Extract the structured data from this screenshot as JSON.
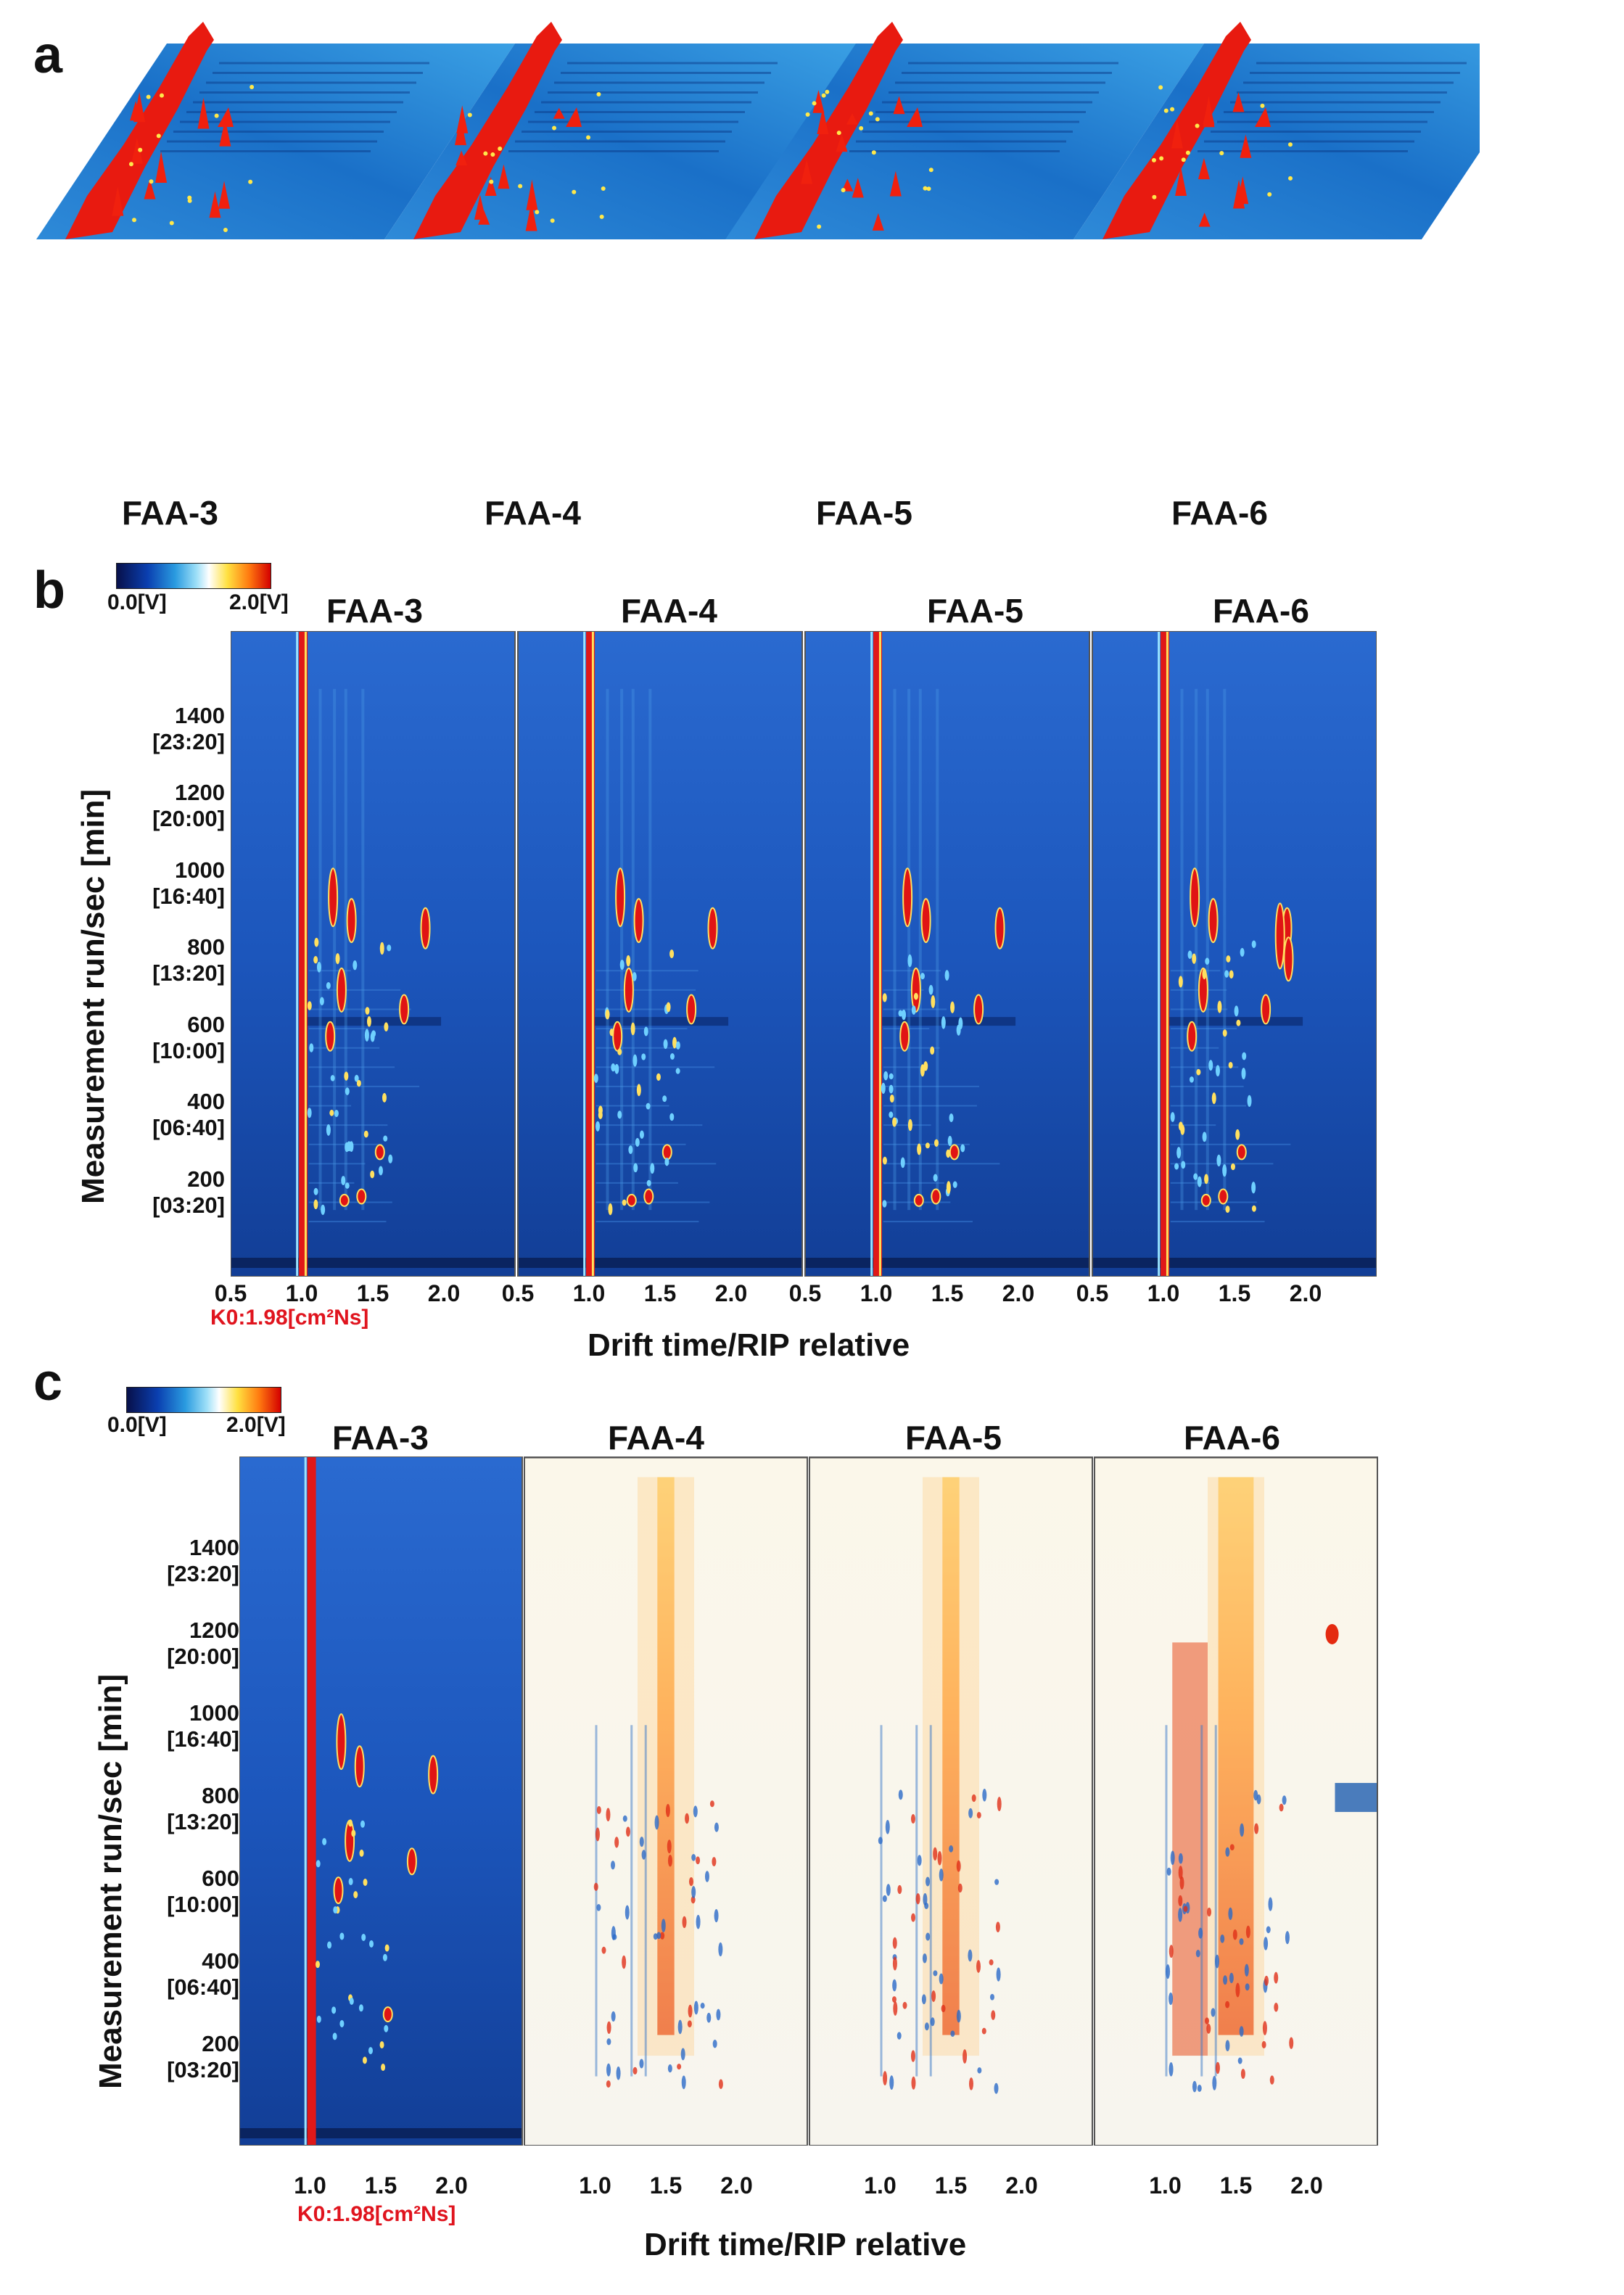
{
  "panels": {
    "a": "a",
    "b": "b",
    "c": "c"
  },
  "samples": [
    "FAA-3",
    "FAA-4",
    "FAA-5",
    "FAA-6"
  ],
  "colorbar": {
    "min_label": "0.0[V]",
    "max_label": "2.0[V]"
  },
  "y_axis": {
    "title": "Measurement run/sec [min]",
    "ticks": [
      {
        "value": 200,
        "time": "[03:20]"
      },
      {
        "value": 400,
        "time": "[06:40]"
      },
      {
        "value": 600,
        "time": "[10:00]"
      },
      {
        "value": 800,
        "time": "[13:20]"
      },
      {
        "value": 1000,
        "time": "[16:40]"
      },
      {
        "value": 1200,
        "time": "[20:00]"
      },
      {
        "value": 1400,
        "time": "[23:20]"
      }
    ]
  },
  "x_axis": {
    "title": "Drift time/RIP relative",
    "ticks_b": [
      "0.5",
      "1.0",
      "1.5",
      "2.0"
    ],
    "ticks_c": [
      "1.0",
      "1.5",
      "2.0"
    ],
    "k0_label": "K0:1.98[cm²Ns]"
  },
  "chart_data": [
    {
      "type": "heatmap",
      "title": "a",
      "panel": "3D topographic spectra",
      "series": [
        "FAA-3",
        "FAA-4",
        "FAA-5",
        "FAA-6"
      ]
    },
    {
      "type": "heatmap",
      "title": "b",
      "panel": "2D topographic spectra",
      "xlabel": "Drift time/RIP relative",
      "ylabel": "Measurement run/sec [min]",
      "xlim": [
        0.5,
        2.5
      ],
      "ylim": [
        0,
        1600
      ],
      "series": [
        "FAA-3",
        "FAA-4",
        "FAA-5",
        "FAA-6"
      ],
      "rip_position": 1.0,
      "colorbar_range": [
        0.0,
        2.0
      ]
    },
    {
      "type": "heatmap",
      "title": "c",
      "panel": "difference spectra (reference FAA-3)",
      "xlabel": "Drift time/RIP relative",
      "ylabel": "Measurement run/sec [min]",
      "xlim": [
        0.5,
        2.5
      ],
      "ylim": [
        0,
        1600
      ],
      "series": [
        "FAA-3",
        "FAA-4",
        "FAA-5",
        "FAA-6"
      ],
      "reference": "FAA-3",
      "colorbar_range": [
        0.0,
        2.0
      ]
    }
  ]
}
